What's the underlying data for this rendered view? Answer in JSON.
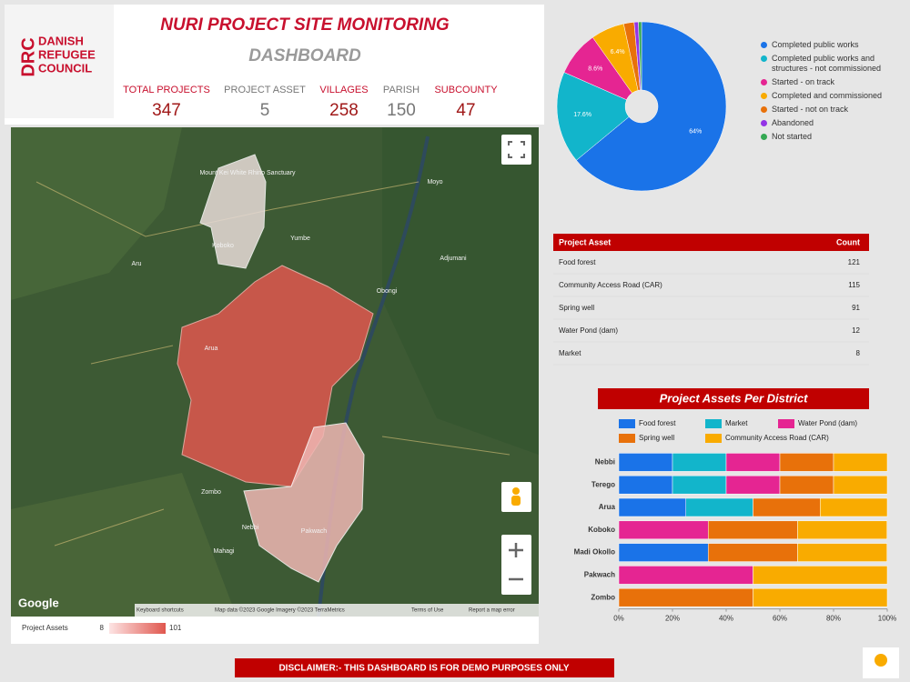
{
  "header": {
    "logo": [
      "DRC",
      "DANISH",
      "REFUGEE",
      "COUNCIL"
    ],
    "title": "NURI PROJECT SITE MONITORING",
    "subtitle": "DASHBOARD"
  },
  "kpis": [
    {
      "label": "TOTAL PROJECTS",
      "value": 347
    },
    {
      "label": "PROJECT ASSET",
      "value": 5
    },
    {
      "label": "VILLAGES",
      "value": 258
    },
    {
      "label": "PARISH",
      "value": 150
    },
    {
      "label": "SUBCOUNTY",
      "value": 47
    }
  ],
  "map": {
    "places": [
      "Mount Kei White Rhino Sanctuary",
      "Koboko",
      "Yumbe",
      "Moyo",
      "Adjumani",
      "Obongi",
      "Arua",
      "Zombo",
      "Nebbi",
      "Pakwach",
      "Mahagi",
      "Aru"
    ],
    "google": "Google",
    "attribution": [
      "Keyboard shortcuts",
      "Map data ©2023 Google Imagery ©2023 TerraMetrics",
      "Terms of Use",
      "Report a map error"
    ],
    "legend": {
      "title": "Project Assets",
      "min": 8,
      "max": 101
    }
  },
  "table": {
    "columns": [
      "Project Asset",
      "Count"
    ],
    "rows": [
      [
        "Food forest",
        121
      ],
      [
        "Community Access Road (CAR)",
        115
      ],
      [
        "Spring well",
        91
      ],
      [
        "Water Pond (dam)",
        12
      ],
      [
        "Market",
        8
      ]
    ]
  },
  "chart_data": [
    {
      "type": "pie",
      "donut": true,
      "categories": [
        "Completed public works",
        "Completed public works and structures - not commissioned",
        "Started - on track",
        "Completed and commissioned",
        "Started - not on track",
        "Abandoned",
        "Not started"
      ],
      "values": [
        64,
        17.6,
        8.6,
        6.4,
        2,
        0.8,
        0.6
      ],
      "value_labels": [
        "64%",
        "17.6%",
        "8.6%",
        "6.4%",
        null,
        null,
        null
      ],
      "colors": [
        "#1a73e8",
        "#12b5cb",
        "#e52592",
        "#f9ab00",
        "#e8710a",
        "#9334e6",
        "#34a853"
      ]
    },
    {
      "type": "bar",
      "orientation": "horizontal",
      "stacked": true,
      "title": "Project Assets Per District",
      "categories": [
        "Nebbi",
        "Terego",
        "Arua",
        "Koboko",
        "Madi Okollo",
        "Pakwach",
        "Zombo"
      ],
      "series": [
        {
          "name": "Food forest",
          "color": "#1a73e8",
          "values": [
            20,
            20,
            25,
            0,
            33.3,
            0,
            0
          ]
        },
        {
          "name": "Market",
          "color": "#12b5cb",
          "values": [
            20,
            20,
            25,
            0,
            0,
            0,
            0
          ]
        },
        {
          "name": "Water Pond (dam)",
          "color": "#e52592",
          "values": [
            20,
            20,
            0,
            33.3,
            0,
            50,
            0
          ]
        },
        {
          "name": "Spring well",
          "color": "#e8710a",
          "values": [
            20,
            20,
            25,
            33.3,
            33.3,
            0,
            50
          ]
        },
        {
          "name": "Community Access Road (CAR)",
          "color": "#f9ab00",
          "values": [
            20,
            20,
            25,
            33.3,
            33.3,
            50,
            50
          ]
        }
      ],
      "xlim": [
        0,
        100
      ],
      "xticks": [
        {
          "value": 0,
          "label": "0%"
        },
        {
          "value": 20,
          "label": "20%"
        },
        {
          "value": 40,
          "label": "40%"
        },
        {
          "value": 60,
          "label": "60%"
        },
        {
          "value": 80,
          "label": "80%"
        },
        {
          "value": 100,
          "label": "100%"
        }
      ],
      "legend": "top"
    }
  ],
  "disclaimer": "DISCLAIMER:- THIS DASHBOARD IS FOR DEMO PURPOSES ONLY"
}
